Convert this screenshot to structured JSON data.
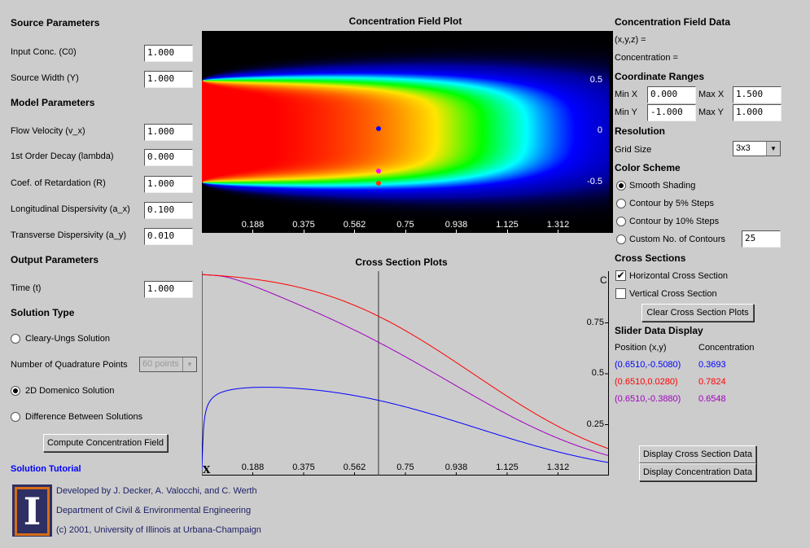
{
  "source": {
    "title": "Source Parameters",
    "fields": [
      {
        "label": "Input Conc. (C0)",
        "value": "1.000"
      },
      {
        "label": "Source Width (Y)",
        "value": "1.000"
      }
    ]
  },
  "model": {
    "title": "Model Parameters",
    "fields": [
      {
        "label": "Flow Velocity (v_x)",
        "value": "1.000"
      },
      {
        "label": "1st Order Decay (lambda)",
        "value": "0.000"
      },
      {
        "label": "Coef. of Retardation (R)",
        "value": "1.000"
      },
      {
        "label": "Longitudinal Dispersivity (a_x)",
        "value": "0.100"
      },
      {
        "label": "Transverse Dispersivity (a_y)",
        "value": "0.010"
      }
    ]
  },
  "output": {
    "title": "Output Parameters",
    "fields": [
      {
        "label": "Time (t)",
        "value": "1.000"
      }
    ]
  },
  "solution": {
    "title": "Solution Type",
    "cleary": "Cleary-Ungs Solution",
    "quad_label": "Number of Quadrature Points",
    "quad_value": "60 points",
    "domenico": "2D Domenico Solution",
    "difference": "Difference Between Solutions",
    "selected": "domenico",
    "compute": "Compute Concentration Field",
    "tutorial": "Solution Tutorial"
  },
  "footer": {
    "line1": "Developed by J. Decker, A. Valocchi, and C. Werth",
    "line2": "Department of Civil & Environmental Engineering",
    "line3": "(c) 2001, University of Illinois at Urbana-Champaign",
    "logo": "I"
  },
  "field_plot": {
    "title": "Concentration Field Plot",
    "x_ticks": [
      "0.188",
      "0.375",
      "0.562",
      "0.75",
      "0.938",
      "1.125",
      "1.312"
    ],
    "y_ticks": [
      "0.5",
      "0",
      "-0.5"
    ]
  },
  "cross_plot": {
    "title": "Cross Section Plots",
    "x_ticks": [
      "0.188",
      "0.375",
      "0.562",
      "0.75",
      "0.938",
      "1.125",
      "1.312"
    ],
    "y_ticks": [
      "0.75",
      "0.5",
      "0.25"
    ],
    "xlabel": "X",
    "ylabel": "C"
  },
  "right": {
    "data_title": "Concentration Field Data",
    "xyz": "(x,y,z) =",
    "conc": "Concentration =",
    "ranges_title": "Coordinate Ranges",
    "minx_label": "Min X",
    "minx": "0.000",
    "maxx_label": "Max X",
    "maxx": "1.500",
    "miny_label": "Min Y",
    "miny": "-1.000",
    "maxy_label": "Max Y",
    "maxy": "1.000",
    "res_title": "Resolution",
    "grid_label": "Grid Size",
    "grid_value": "3x3",
    "color_title": "Color Scheme",
    "smooth": "Smooth Shading",
    "c5": "Contour by 5% Steps",
    "c10": "Contour by 10% Steps",
    "custom": "Custom No. of Contours",
    "custom_value": "25",
    "cs_title": "Cross Sections",
    "horiz": "Horizontal Cross Section",
    "horiz_checked": true,
    "vert": "Vertical Cross Section",
    "vert_checked": false,
    "clear": "Clear Cross Section Plots",
    "slider_title": "Slider Data Display",
    "pos_head": "Position (x,y)",
    "conc_head": "Concentration",
    "rows": [
      {
        "pos": "(0.6510,-0.5080)",
        "conc": "0.3693",
        "color": "#0000ff"
      },
      {
        "pos": "(0.6510,0.0280)",
        "conc": "0.7824",
        "color": "#ff0000"
      },
      {
        "pos": "(0.6510,-0.3880)",
        "conc": "0.6548",
        "color": "#a000c0"
      }
    ],
    "disp_cross": "Display Cross Section Data",
    "disp_conc": "Display Concentration Data"
  }
}
